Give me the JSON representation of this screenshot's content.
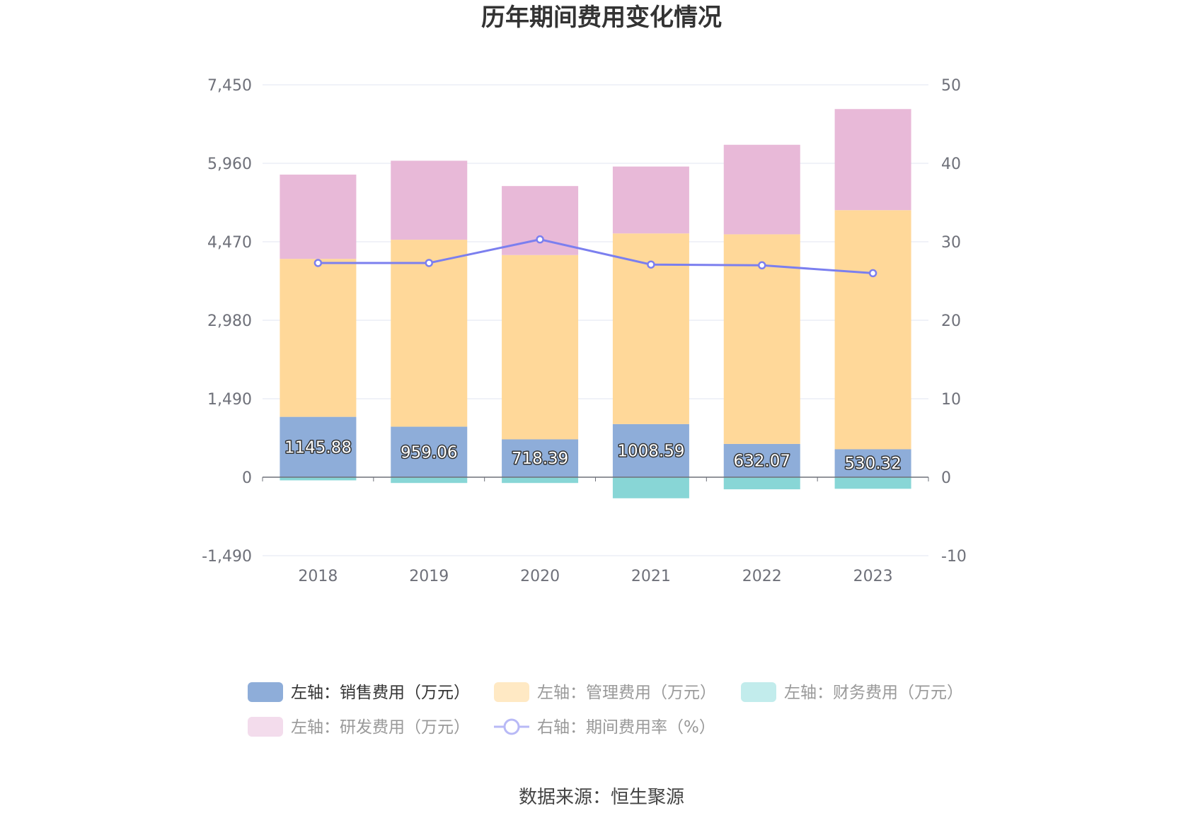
{
  "source_text": "数据来源：恒生聚源",
  "chart_data": {
    "type": "bar",
    "stacked": true,
    "title": "历年期间费用变化情况",
    "categories": [
      "2018",
      "2019",
      "2020",
      "2021",
      "2022",
      "2023"
    ],
    "y_left": {
      "min": -1490,
      "max": 7450,
      "ticks": [
        "7,450",
        "5,960",
        "4,470",
        "2,980",
        "1,490",
        "0",
        "-1,490"
      ],
      "tick_values": [
        7450,
        5960,
        4470,
        2980,
        1490,
        0,
        -1490
      ]
    },
    "y_right": {
      "min": -10,
      "max": 50,
      "ticks": [
        "50",
        "40",
        "30",
        "20",
        "10",
        "0",
        "-10"
      ],
      "tick_values": [
        50,
        40,
        30,
        20,
        10,
        0,
        -10
      ]
    },
    "grid": true,
    "legend_position": "bottom",
    "series": [
      {
        "name": "左轴：销售费用（万元）",
        "axis": "left",
        "kind": "bar",
        "color": "#8eadd9",
        "values": [
          1145.88,
          959.06,
          718.39,
          1008.59,
          632.07,
          530.32
        ],
        "labels": [
          "1145.88",
          "959.06",
          "718.39",
          "1008.59",
          "632.07",
          "530.32"
        ]
      },
      {
        "name": "左轴：管理费用（万元）",
        "axis": "left",
        "kind": "bar",
        "color": "#ffd899",
        "values": [
          3000,
          3550,
          3500,
          3620,
          3980,
          4540
        ]
      },
      {
        "name": "左轴：财务费用（万元）",
        "axis": "left",
        "kind": "bar",
        "color": "#88d6d6",
        "values": [
          -60,
          -110,
          -110,
          -400,
          -230,
          -220
        ]
      },
      {
        "name": "左轴：研发费用（万元）",
        "axis": "left",
        "kind": "bar",
        "color": "#e8b9d8",
        "values": [
          1600,
          1500,
          1310,
          1270,
          1700,
          1920
        ]
      },
      {
        "name": "右轴：期间费用率（%）",
        "axis": "right",
        "kind": "line",
        "color": "#7b7fef",
        "values": [
          27.3,
          27.3,
          30.3,
          27.1,
          27.0,
          26.0
        ]
      }
    ],
    "legend_colors": [
      "#8eadd9",
      "#ffe9c4",
      "#c2ecec",
      "#f3dcec",
      "#b8b9f6"
    ],
    "legend_text_colors": [
      "#333333",
      "#999999",
      "#999999",
      "#999999",
      "#999999"
    ]
  }
}
